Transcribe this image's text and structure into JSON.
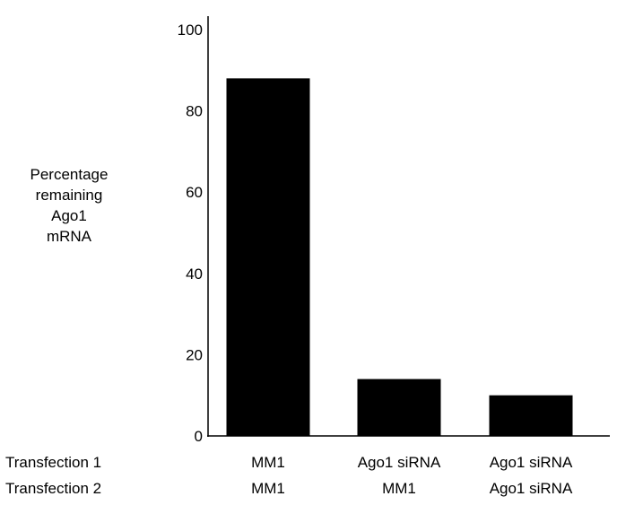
{
  "chart_data": {
    "type": "bar",
    "title": "",
    "ylabel_lines": [
      "Percentage",
      "remaining",
      "Ago1",
      "mRNA"
    ],
    "ylim": [
      0,
      100
    ],
    "yticks": [
      0,
      20,
      40,
      60,
      80,
      100
    ],
    "row_labels": [
      "Transfection 1",
      "Transfection 2"
    ],
    "categories": [
      {
        "transfection1": "MM1",
        "transfection2": "MM1"
      },
      {
        "transfection1": "Ago1 siRNA",
        "transfection2": "MM1"
      },
      {
        "transfection1": "Ago1 siRNA",
        "transfection2": "Ago1 siRNA"
      }
    ],
    "values": [
      88,
      14,
      10
    ],
    "bar_color": "#000000",
    "grid": false,
    "legend": "none"
  }
}
